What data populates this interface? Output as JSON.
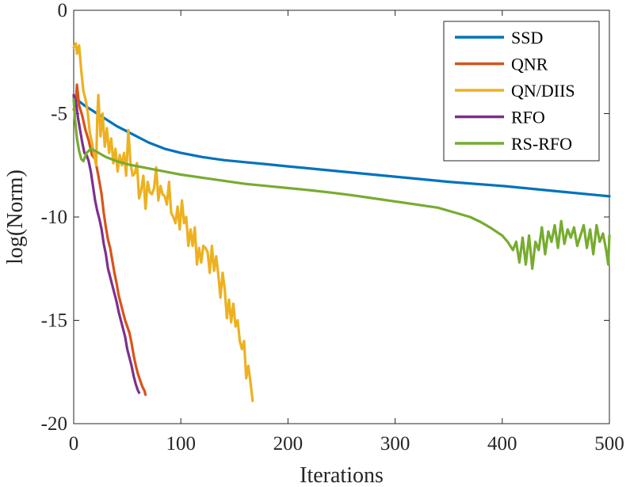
{
  "chart_data": {
    "type": "line",
    "title": "",
    "xlabel": "Iterations",
    "ylabel": "log(Norm)",
    "xlim": [
      0,
      500
    ],
    "ylim": [
      -20,
      0
    ],
    "x_ticks": [
      "0",
      "100",
      "200",
      "300",
      "400",
      "500"
    ],
    "y_ticks": [
      "0",
      "-5",
      "-10",
      "-15",
      "-20"
    ],
    "grid": false,
    "legend_position": "top-right",
    "series": [
      {
        "name": "SSD",
        "color": "#0072BD",
        "x": [
          0,
          10,
          25,
          40,
          55,
          70,
          85,
          100,
          120,
          140,
          160,
          180,
          200,
          250,
          300,
          350,
          400,
          450,
          500
        ],
        "y": [
          -4.2,
          -4.6,
          -5.1,
          -5.6,
          -6.0,
          -6.4,
          -6.7,
          -6.9,
          -7.1,
          -7.25,
          -7.35,
          -7.45,
          -7.55,
          -7.8,
          -8.05,
          -8.3,
          -8.5,
          -8.75,
          -9.0
        ]
      },
      {
        "name": "QNR",
        "color": "#D95319",
        "x": [
          0,
          2,
          3,
          5,
          8,
          11,
          14,
          17,
          20,
          23,
          26,
          28,
          30,
          32,
          34,
          36,
          38,
          40,
          42,
          44,
          46,
          48,
          50,
          52,
          54,
          56,
          58,
          60,
          62,
          64,
          66,
          67
        ],
        "y": [
          -4.8,
          -4.5,
          -3.6,
          -4.6,
          -5.1,
          -5.8,
          -6.3,
          -7.0,
          -7.2,
          -8.0,
          -8.9,
          -9.8,
          -10.5,
          -11.1,
          -11.5,
          -12.1,
          -12.7,
          -13.2,
          -13.8,
          -14.2,
          -14.6,
          -15.0,
          -15.3,
          -15.6,
          -16.1,
          -16.7,
          -17.2,
          -17.6,
          -17.9,
          -18.2,
          -18.4,
          -18.6
        ]
      },
      {
        "name": "QN/DIIS",
        "color": "#EDB120",
        "x": [
          0,
          2,
          3,
          5,
          7,
          9,
          11,
          13,
          15,
          17,
          19,
          21,
          22,
          23,
          25,
          27,
          29,
          31,
          33,
          35,
          37,
          39,
          41,
          43,
          45,
          47,
          49,
          51,
          53,
          55,
          57,
          59,
          61,
          63,
          65,
          67,
          69,
          71,
          73,
          75,
          77,
          79,
          81,
          83,
          85,
          87,
          89,
          91,
          93,
          95,
          97,
          99,
          101,
          103,
          105,
          107,
          109,
          111,
          113,
          115,
          117,
          119,
          121,
          123,
          125,
          127,
          129,
          131,
          133,
          135,
          137,
          139,
          141,
          143,
          145,
          147,
          149,
          151,
          153,
          155,
          157,
          159,
          161,
          163,
          165,
          167
        ],
        "y": [
          -1.8,
          -1.6,
          -2.1,
          -1.7,
          -2.9,
          -3.9,
          -4.3,
          -4.9,
          -5.9,
          -6.4,
          -7.0,
          -7.5,
          -5.2,
          -4.1,
          -6.1,
          -5.0,
          -6.6,
          -5.7,
          -6.9,
          -6.2,
          -7.4,
          -6.7,
          -7.8,
          -7.0,
          -7.5,
          -6.9,
          -8.0,
          -5.8,
          -7.4,
          -8.0,
          -7.9,
          -7.4,
          -9.1,
          -8.7,
          -8.0,
          -9.6,
          -8.3,
          -8.8,
          -8.9,
          -8.6,
          -7.6,
          -9.2,
          -8.5,
          -8.9,
          -9.0,
          -9.4,
          -8.3,
          -9.8,
          -10.0,
          -10.3,
          -9.5,
          -10.6,
          -9.2,
          -10.3,
          -10.0,
          -11.4,
          -10.6,
          -11.4,
          -10.5,
          -12.3,
          -11.5,
          -12.2,
          -11.4,
          -11.5,
          -11.7,
          -12.7,
          -11.4,
          -12.6,
          -11.9,
          -12.8,
          -13.9,
          -12.7,
          -13.5,
          -14.9,
          -14.0,
          -15.1,
          -14.2,
          -15.3,
          -15.0,
          -16.0,
          -16.4,
          -16.0,
          -17.8,
          -17.2,
          -18.0,
          -18.9
        ]
      },
      {
        "name": "RFO",
        "color": "#7E2F8E",
        "x": [
          0,
          2,
          4,
          6,
          8,
          10,
          12,
          14,
          16,
          18,
          20,
          22,
          24,
          26,
          28,
          30,
          32,
          34,
          36,
          38,
          40,
          42,
          44,
          46,
          48,
          50,
          52,
          54,
          56,
          58,
          60,
          61
        ],
        "y": [
          -4.1,
          -4.4,
          -5.2,
          -5.8,
          -6.4,
          -6.9,
          -7.0,
          -7.3,
          -7.8,
          -8.5,
          -9.2,
          -9.7,
          -10.1,
          -10.6,
          -11.3,
          -11.8,
          -12.5,
          -12.9,
          -13.3,
          -13.7,
          -14.1,
          -14.6,
          -15.0,
          -15.4,
          -15.8,
          -16.4,
          -16.8,
          -17.2,
          -17.7,
          -18.1,
          -18.4,
          -18.5
        ]
      },
      {
        "name": "RS-RFO",
        "color": "#77AC30",
        "x": [
          0,
          1,
          3,
          5,
          7,
          9,
          12,
          16,
          20,
          30,
          40,
          50,
          60,
          70,
          80,
          90,
          100,
          120,
          140,
          160,
          180,
          200,
          220,
          240,
          260,
          280,
          300,
          320,
          340,
          360,
          370,
          380,
          390,
          400,
          405,
          410,
          413,
          416,
          419,
          422,
          425,
          428,
          431,
          434,
          437,
          440,
          443,
          446,
          449,
          452,
          455,
          458,
          461,
          464,
          467,
          470,
          473,
          476,
          479,
          482,
          485,
          488,
          491,
          494,
          497,
          499,
          500
        ],
        "y": [
          -4.3,
          -5.2,
          -6.2,
          -6.8,
          -7.2,
          -7.3,
          -6.9,
          -6.7,
          -6.8,
          -7.1,
          -7.3,
          -7.45,
          -7.55,
          -7.65,
          -7.75,
          -7.85,
          -7.95,
          -8.1,
          -8.25,
          -8.4,
          -8.5,
          -8.6,
          -8.7,
          -8.82,
          -8.95,
          -9.1,
          -9.25,
          -9.4,
          -9.55,
          -9.85,
          -10.0,
          -10.25,
          -10.55,
          -10.9,
          -11.2,
          -11.6,
          -11.2,
          -12.2,
          -11.0,
          -12.3,
          -10.9,
          -12.5,
          -11.2,
          -11.6,
          -10.5,
          -11.8,
          -10.7,
          -11.2,
          -10.4,
          -11.5,
          -10.2,
          -11.3,
          -10.6,
          -11.0,
          -10.5,
          -11.4,
          -10.9,
          -10.4,
          -11.5,
          -10.6,
          -11.8,
          -10.4,
          -11.2,
          -10.8,
          -11.6,
          -12.3,
          -10.9
        ]
      }
    ]
  }
}
